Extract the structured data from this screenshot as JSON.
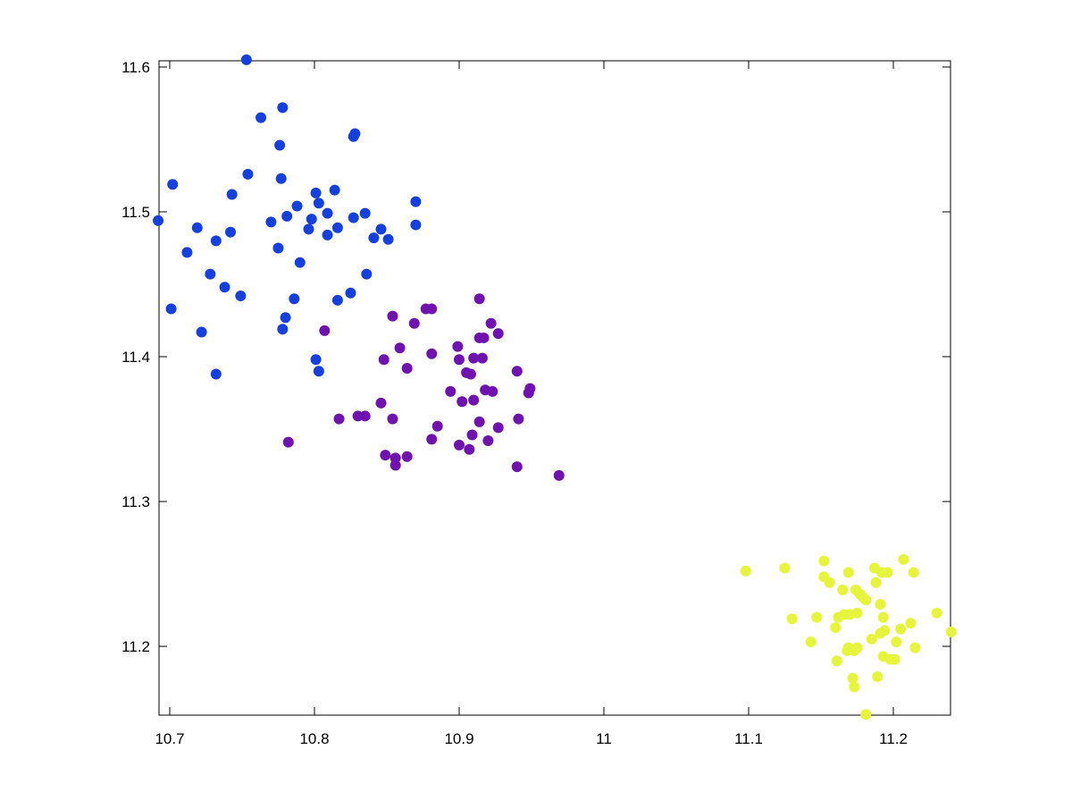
{
  "chart_data": {
    "type": "scatter",
    "xlim": [
      10.6926,
      11.2395
    ],
    "ylim": [
      11.1525,
      11.6043
    ],
    "xticks": [
      10.7,
      10.8,
      10.9,
      11,
      11.1,
      11.2
    ],
    "yticks": [
      11.2,
      11.3,
      11.4,
      11.5,
      11.6
    ],
    "series": [
      {
        "color": "#1640dd",
        "x": [
          10.753,
          10.763,
          10.778,
          10.776,
          10.754,
          10.777,
          10.702,
          10.827,
          10.828,
          10.801,
          10.814,
          10.743,
          10.87,
          10.803,
          10.692,
          10.719,
          10.77,
          10.781,
          10.788,
          10.798,
          10.809,
          10.796,
          10.809,
          10.816,
          10.827,
          10.835,
          10.846,
          10.851,
          10.841,
          10.87,
          10.732,
          10.742,
          10.775,
          10.712,
          10.79,
          10.728,
          10.836,
          10.738,
          10.749,
          10.786,
          10.816,
          10.825,
          10.701,
          10.722,
          10.78,
          10.778,
          10.732,
          10.801,
          10.803
        ],
        "values": [
          11.605,
          11.565,
          11.572,
          11.546,
          11.526,
          11.523,
          11.519,
          11.552,
          11.554,
          11.513,
          11.515,
          11.512,
          11.507,
          11.506,
          11.494,
          11.489,
          11.493,
          11.497,
          11.504,
          11.495,
          11.499,
          11.488,
          11.484,
          11.489,
          11.496,
          11.499,
          11.488,
          11.481,
          11.482,
          11.491,
          11.48,
          11.486,
          11.475,
          11.472,
          11.465,
          11.457,
          11.457,
          11.448,
          11.442,
          11.44,
          11.439,
          11.444,
          11.433,
          11.417,
          11.427,
          11.419,
          11.388,
          11.398,
          11.39
        ]
      },
      {
        "color": "#7012b0",
        "x": [
          10.914,
          10.854,
          10.869,
          10.877,
          10.881,
          10.922,
          10.927,
          10.807,
          10.914,
          10.917,
          10.859,
          10.881,
          10.848,
          10.899,
          10.9,
          10.91,
          10.916,
          10.864,
          10.94,
          10.905,
          10.908,
          10.894,
          10.918,
          10.923,
          10.949,
          10.948,
          10.846,
          10.902,
          10.91,
          10.854,
          10.835,
          10.83,
          10.817,
          10.914,
          10.941,
          10.885,
          10.909,
          10.881,
          10.927,
          10.92,
          10.9,
          10.907,
          10.782,
          10.849,
          10.856,
          10.864,
          10.856,
          10.94,
          10.969
        ],
        "values": [
          11.44,
          11.428,
          11.423,
          11.433,
          11.433,
          11.423,
          11.416,
          11.418,
          11.413,
          11.413,
          11.406,
          11.402,
          11.398,
          11.407,
          11.398,
          11.399,
          11.399,
          11.392,
          11.39,
          11.389,
          11.388,
          11.376,
          11.377,
          11.376,
          11.378,
          11.375,
          11.368,
          11.369,
          11.37,
          11.357,
          11.359,
          11.359,
          11.357,
          11.355,
          11.357,
          11.352,
          11.346,
          11.343,
          11.351,
          11.342,
          11.339,
          11.336,
          11.341,
          11.332,
          11.33,
          11.331,
          11.325,
          11.324,
          11.318
        ]
      },
      {
        "color": "#e6f53c",
        "x": [
          11.098,
          11.125,
          11.152,
          11.207,
          11.214,
          11.187,
          11.192,
          11.196,
          11.169,
          11.152,
          11.156,
          11.165,
          11.174,
          11.177,
          11.181,
          11.188,
          11.179,
          11.191,
          11.13,
          11.147,
          11.166,
          11.162,
          11.17,
          11.175,
          11.193,
          11.23,
          11.212,
          11.205,
          11.16,
          11.194,
          11.24,
          11.143,
          11.185,
          11.191,
          11.202,
          11.215,
          11.169,
          11.173,
          11.175,
          11.168,
          11.193,
          11.198,
          11.201,
          11.161,
          11.189,
          11.172,
          11.173,
          11.181
        ],
        "values": [
          11.252,
          11.254,
          11.259,
          11.26,
          11.251,
          11.254,
          11.251,
          11.251,
          11.251,
          11.248,
          11.244,
          11.239,
          11.239,
          11.236,
          11.232,
          11.244,
          11.234,
          11.229,
          11.219,
          11.22,
          11.222,
          11.22,
          11.222,
          11.223,
          11.22,
          11.223,
          11.216,
          11.212,
          11.213,
          11.211,
          11.21,
          11.203,
          11.205,
          11.209,
          11.203,
          11.199,
          11.199,
          11.197,
          11.199,
          11.197,
          11.193,
          11.191,
          11.191,
          11.19,
          11.179,
          11.178,
          11.172,
          11.153
        ]
      }
    ]
  }
}
